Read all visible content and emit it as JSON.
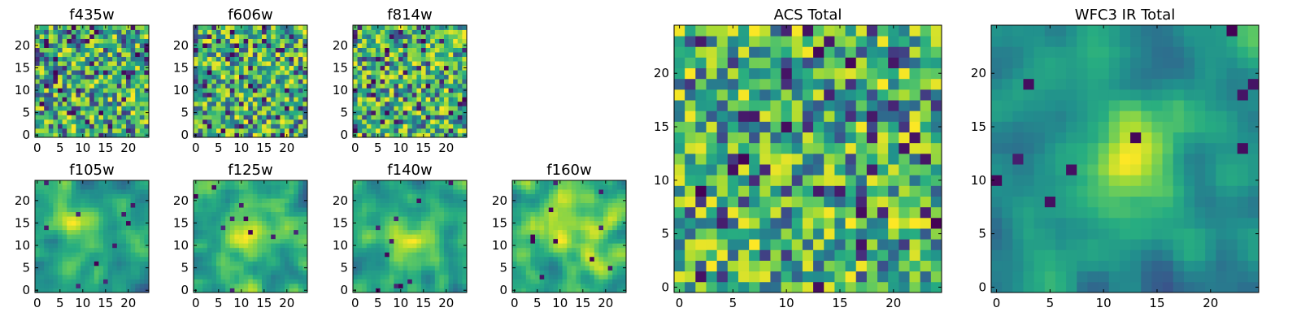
{
  "chart_data": [
    {
      "type": "heatmap",
      "title": "f435w",
      "size": 25,
      "xlim": [
        -0.5,
        24.5
      ],
      "ylim": [
        -0.5,
        24.5
      ],
      "xticks": [
        0,
        5,
        10,
        15,
        20
      ],
      "yticks": [
        0,
        5,
        10,
        15,
        20
      ],
      "colormap": "viridis",
      "texture": "noise",
      "seed": 11
    },
    {
      "type": "heatmap",
      "title": "f606w",
      "size": 25,
      "xlim": [
        -0.5,
        24.5
      ],
      "ylim": [
        -0.5,
        24.5
      ],
      "xticks": [
        0,
        5,
        10,
        15,
        20
      ],
      "yticks": [
        0,
        5,
        10,
        15,
        20
      ],
      "colormap": "viridis",
      "texture": "noise",
      "seed": 23
    },
    {
      "type": "heatmap",
      "title": "f814w",
      "size": 25,
      "xlim": [
        -0.5,
        24.5
      ],
      "ylim": [
        -0.5,
        24.5
      ],
      "xticks": [
        0,
        5,
        10,
        15,
        20
      ],
      "yticks": [
        0,
        5,
        10,
        15,
        20
      ],
      "colormap": "viridis",
      "texture": "noise",
      "seed": 37
    },
    {
      "type": "heatmap",
      "title": "f105w",
      "size": 25,
      "xlim": [
        -0.5,
        24.5
      ],
      "ylim": [
        -0.5,
        24.5
      ],
      "xticks": [
        0,
        5,
        10,
        15,
        20
      ],
      "yticks": [
        0,
        5,
        10,
        15,
        20
      ],
      "colormap": "viridis",
      "texture": "smooth",
      "seed": 41
    },
    {
      "type": "heatmap",
      "title": "f125w",
      "size": 25,
      "xlim": [
        -0.5,
        24.5
      ],
      "ylim": [
        -0.5,
        24.5
      ],
      "xticks": [
        0,
        5,
        10,
        15,
        20
      ],
      "yticks": [
        0,
        5,
        10,
        15,
        20
      ],
      "colormap": "viridis",
      "texture": "smooth",
      "seed": 53
    },
    {
      "type": "heatmap",
      "title": "f140w",
      "size": 25,
      "xlim": [
        -0.5,
        24.5
      ],
      "ylim": [
        -0.5,
        24.5
      ],
      "xticks": [
        0,
        5,
        10,
        15,
        20
      ],
      "yticks": [
        0,
        5,
        10,
        15,
        20
      ],
      "colormap": "viridis",
      "texture": "smooth",
      "seed": 67
    },
    {
      "type": "heatmap",
      "title": "f160w",
      "size": 25,
      "xlim": [
        -0.5,
        24.5
      ],
      "ylim": [
        -0.5,
        24.5
      ],
      "xticks": [
        0,
        5,
        10,
        15,
        20
      ],
      "yticks": [
        0,
        5,
        10,
        15,
        20
      ],
      "colormap": "viridis",
      "texture": "smooth",
      "seed": 79
    },
    {
      "type": "heatmap",
      "title": "ACS Total",
      "size": 25,
      "xlim": [
        -0.5,
        24.5
      ],
      "ylim": [
        -0.5,
        24.5
      ],
      "xticks": [
        0,
        5,
        10,
        15,
        20
      ],
      "yticks": [
        0,
        5,
        10,
        15,
        20
      ],
      "colormap": "viridis",
      "texture": "noise",
      "seed": 97
    },
    {
      "type": "heatmap",
      "title": "WFC3 IR Total",
      "size": 25,
      "xlim": [
        -0.5,
        24.5
      ],
      "ylim": [
        -0.5,
        24.5
      ],
      "xticks": [
        0,
        5,
        10,
        15,
        20
      ],
      "yticks": [
        0,
        5,
        10,
        15,
        20
      ],
      "colormap": "viridis",
      "texture": "smooth-bright",
      "seed": 101
    }
  ]
}
